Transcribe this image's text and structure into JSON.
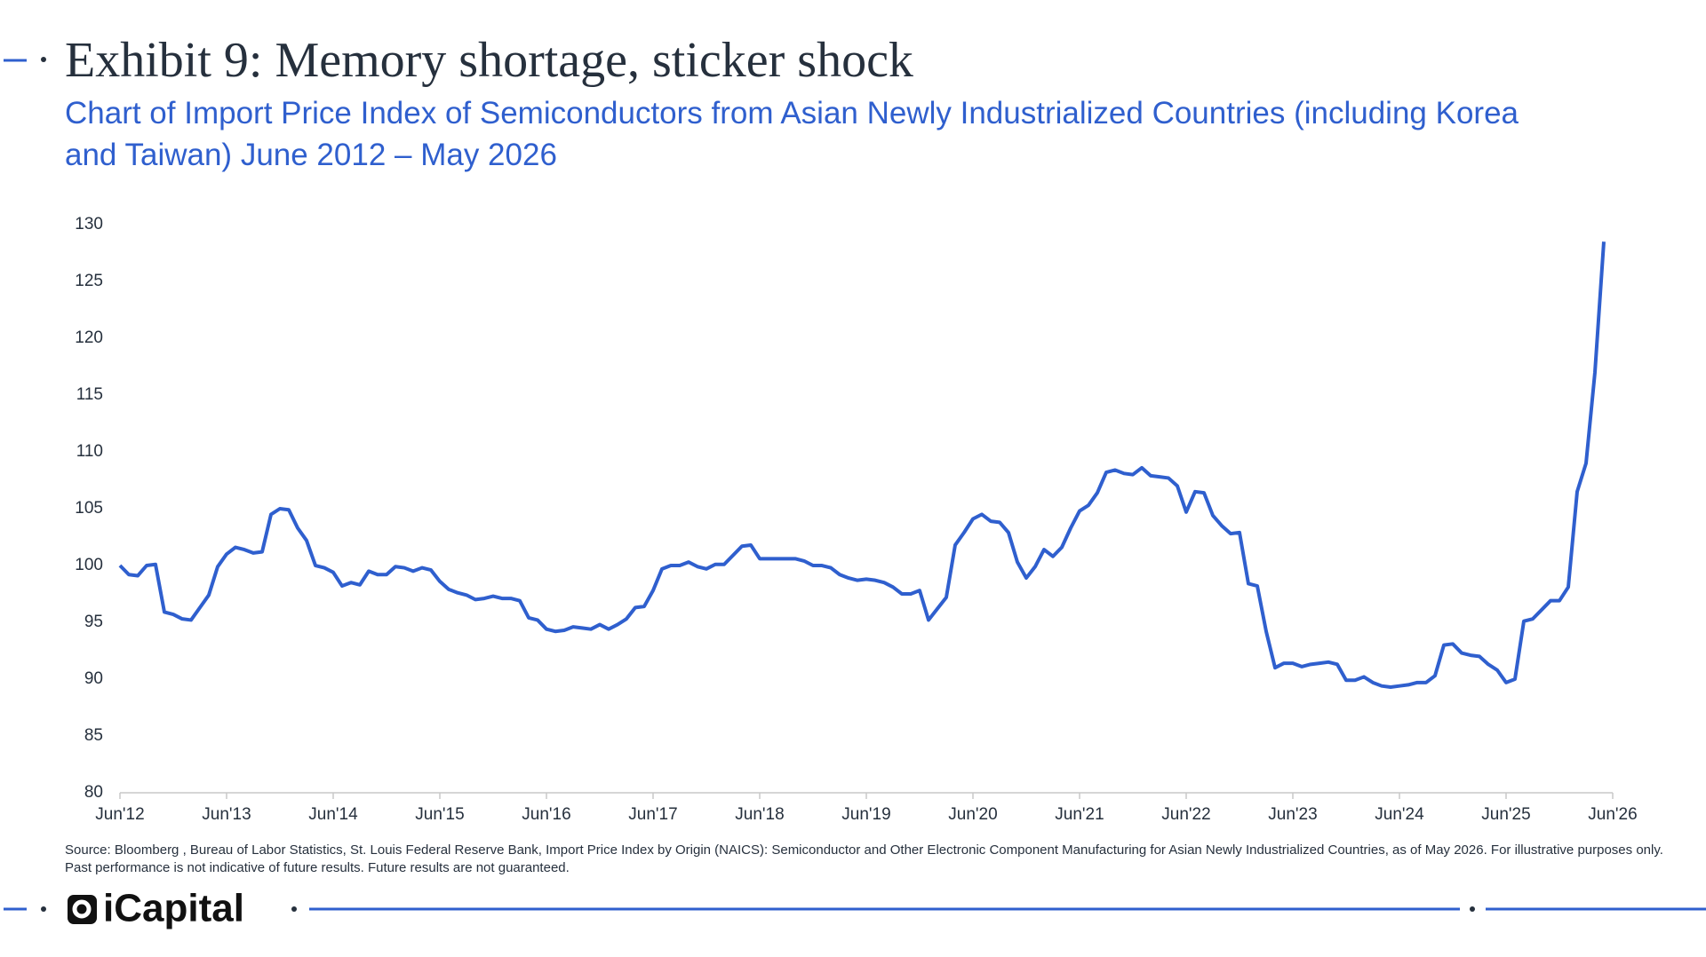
{
  "chart_data": {
    "type": "line",
    "title": "Exhibit 9: Memory shortage, sticker shock",
    "subtitle": "Chart of Import Price Index of Semiconductors from Asian Newly Industrialized Countries (including Korea and Taiwan) June 2012 – May 2026",
    "source": "Source: Bloomberg , Bureau of Labor Statistics, St. Louis Federal Reserve Bank, Import Price Index by Origin (NAICS): Semiconductor and Other Electronic Component Manufacturing for Asian Newly Industrialized Countries, as of May 2026. For illustrative purposes only. Past performance is not indicative of future results. Future results are not guaranteed.",
    "logo": "iCapital",
    "x": [
      "2012-06",
      "2012-07",
      "2012-08",
      "2012-09",
      "2012-10",
      "2012-11",
      "2012-12",
      "2013-01",
      "2013-02",
      "2013-03",
      "2013-04",
      "2013-05",
      "2013-06",
      "2013-07",
      "2013-08",
      "2013-09",
      "2013-10",
      "2013-11",
      "2013-12",
      "2014-01",
      "2014-02",
      "2014-03",
      "2014-04",
      "2014-05",
      "2014-06",
      "2014-07",
      "2014-08",
      "2014-09",
      "2014-10",
      "2014-11",
      "2014-12",
      "2015-01",
      "2015-02",
      "2015-03",
      "2015-04",
      "2015-05",
      "2015-06",
      "2015-07",
      "2015-08",
      "2015-09",
      "2015-10",
      "2015-11",
      "2015-12",
      "2016-01",
      "2016-02",
      "2016-03",
      "2016-04",
      "2016-05",
      "2016-06",
      "2016-07",
      "2016-08",
      "2016-09",
      "2016-10",
      "2016-11",
      "2016-12",
      "2017-01",
      "2017-02",
      "2017-03",
      "2017-04",
      "2017-05",
      "2017-06",
      "2017-07",
      "2017-08",
      "2017-09",
      "2017-10",
      "2017-11",
      "2017-12",
      "2018-01",
      "2018-02",
      "2018-03",
      "2018-04",
      "2018-05",
      "2018-06",
      "2018-07",
      "2018-08",
      "2018-09",
      "2018-10",
      "2018-11",
      "2018-12",
      "2019-01",
      "2019-02",
      "2019-03",
      "2019-04",
      "2019-05",
      "2019-06",
      "2019-07",
      "2019-08",
      "2019-09",
      "2019-10",
      "2019-11",
      "2019-12",
      "2020-01",
      "2020-02",
      "2020-03",
      "2020-04",
      "2020-05",
      "2020-06",
      "2020-07",
      "2020-08",
      "2020-09",
      "2020-10",
      "2020-11",
      "2020-12",
      "2021-01",
      "2021-02",
      "2021-03",
      "2021-04",
      "2021-05",
      "2021-06",
      "2021-07",
      "2021-08",
      "2021-09",
      "2021-10",
      "2021-11",
      "2021-12",
      "2022-01",
      "2022-02",
      "2022-03",
      "2022-04",
      "2022-05",
      "2022-06",
      "2022-07",
      "2022-08",
      "2022-09",
      "2022-10",
      "2022-11",
      "2022-12",
      "2023-01",
      "2023-02",
      "2023-03",
      "2023-04",
      "2023-05",
      "2023-06",
      "2023-07",
      "2023-08",
      "2023-09",
      "2023-10",
      "2023-11",
      "2023-12",
      "2024-01",
      "2024-02",
      "2024-03",
      "2024-04",
      "2024-05",
      "2024-06",
      "2024-07",
      "2024-08",
      "2024-09",
      "2024-10",
      "2024-11",
      "2024-12",
      "2025-01",
      "2025-02",
      "2025-03",
      "2025-04",
      "2025-05",
      "2025-06",
      "2025-07",
      "2025-08",
      "2025-09",
      "2025-10",
      "2025-11",
      "2025-12",
      "2026-01",
      "2026-02",
      "2026-03",
      "2026-04",
      "2026-05"
    ],
    "series": [
      {
        "color": "#2f5fce",
        "values": [
          100,
          99.2,
          99.1,
          100,
          100.1,
          95.9,
          95.7,
          95.3,
          95.2,
          96.3,
          97.4,
          99.9,
          101,
          101.6,
          101.4,
          101.1,
          101.2,
          104.5,
          105,
          104.9,
          103.3,
          102.2,
          100,
          99.8,
          99.4,
          98.2,
          98.5,
          98.3,
          99.5,
          99.2,
          99.2,
          99.9,
          99.8,
          99.5,
          99.8,
          99.6,
          98.6,
          97.9,
          97.6,
          97.4,
          97,
          97.1,
          97.3,
          97.1,
          97.1,
          96.9,
          95.4,
          95.2,
          94.4,
          94.2,
          94.3,
          94.6,
          94.5,
          94.4,
          94.8,
          94.4,
          94.8,
          95.3,
          96.3,
          96.4,
          97.8,
          99.7,
          100,
          100,
          100.3,
          99.9,
          99.7,
          100.1,
          100.1,
          100.9,
          101.7,
          101.8,
          100.6,
          100.6,
          100.6,
          100.6,
          100.6,
          100.4,
          100,
          100,
          99.8,
          99.2,
          98.9,
          98.7,
          98.8,
          98.7,
          98.5,
          98.1,
          97.5,
          97.5,
          97.8,
          95.2,
          96.2,
          97.2,
          101.8,
          102.9,
          104.1,
          104.5,
          103.9,
          103.8,
          102.9,
          100.3,
          98.9,
          99.9,
          101.4,
          100.8,
          101.6,
          103.3,
          104.8,
          105.3,
          106.4,
          108.2,
          108.4,
          108.1,
          108,
          108.6,
          107.9,
          107.8,
          107.7,
          107,
          104.7,
          106.5,
          106.4,
          104.4,
          103.5,
          102.8,
          102.9,
          98.4,
          98.2,
          94.2,
          91,
          91.4,
          91.4,
          91.1,
          91.3,
          91.4,
          91.5,
          91.3,
          89.9,
          89.9,
          90.2,
          89.7,
          89.4,
          89.3,
          89.4,
          89.5,
          89.7,
          89.7,
          90.3,
          93,
          93.1,
          92.3,
          92.1,
          92,
          91.3,
          90.8,
          89.7,
          90,
          95.1,
          95.3,
          96.1,
          96.9,
          96.9,
          98.1,
          106.5,
          109,
          117,
          128.5
        ]
      }
    ],
    "xlim": [
      "2012-06",
      "2026-06"
    ],
    "xticks": [
      {
        "value": "2012-06",
        "label": "Jun'12"
      },
      {
        "value": "2013-06",
        "label": "Jun'13"
      },
      {
        "value": "2014-06",
        "label": "Jun'14"
      },
      {
        "value": "2015-06",
        "label": "Jun'15"
      },
      {
        "value": "2016-06",
        "label": "Jun'16"
      },
      {
        "value": "2017-06",
        "label": "Jun'17"
      },
      {
        "value": "2018-06",
        "label": "Jun'18"
      },
      {
        "value": "2019-06",
        "label": "Jun'19"
      },
      {
        "value": "2020-06",
        "label": "Jun'20"
      },
      {
        "value": "2021-06",
        "label": "Jun'21"
      },
      {
        "value": "2022-06",
        "label": "Jun'22"
      },
      {
        "value": "2023-06",
        "label": "Jun'23"
      },
      {
        "value": "2024-06",
        "label": "Jun'24"
      },
      {
        "value": "2025-06",
        "label": "Jun'25"
      },
      {
        "value": "2026-06",
        "label": "Jun'26"
      }
    ],
    "ylim": [
      80,
      130
    ],
    "yticks": [
      80,
      85,
      90,
      95,
      100,
      105,
      110,
      115,
      120,
      125,
      130
    ],
    "grid": false
  }
}
